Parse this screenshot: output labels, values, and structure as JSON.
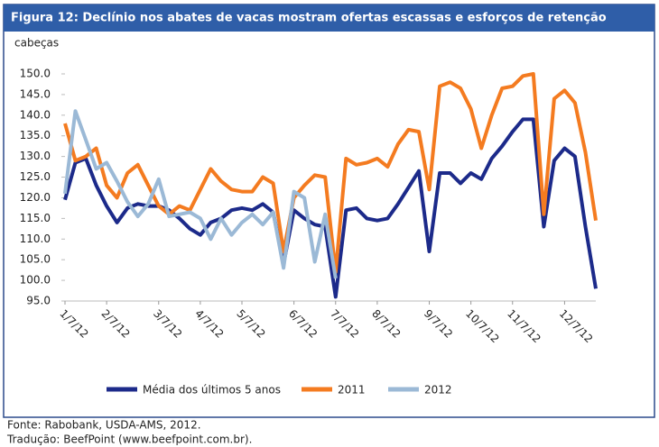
{
  "chart_data": {
    "type": "line",
    "title": "Figura 12: Declínio nos abates de vacas mostram ofertas escassas e esforços de retenção",
    "y_label": "cabeças",
    "source": [
      "Fonte: Rabobank, USDA-AMS, 2012.",
      "Tradução: BeefPoint (www.beefpoint.com.br)."
    ],
    "categories": [
      "1/7/12",
      null,
      null,
      null,
      "2/7/12",
      null,
      null,
      null,
      null,
      "3/7/12",
      null,
      null,
      null,
      "4/7/12",
      null,
      null,
      null,
      "5/7/12",
      null,
      null,
      null,
      null,
      "6/7/12",
      null,
      null,
      null,
      "7/7/12",
      null,
      null,
      null,
      "8/7/12",
      null,
      null,
      null,
      null,
      "9/7/12",
      null,
      null,
      null,
      "10/7/12",
      null,
      null,
      null,
      "11/7/12",
      null,
      null,
      null,
      null,
      "12/7/12",
      null,
      null,
      null
    ],
    "series": [
      {
        "name": "Média dos últimos 5 anos",
        "color": "#1c2a8a",
        "values": [
          119.5,
          128.5,
          129.5,
          123,
          118,
          114,
          117.5,
          118.5,
          118,
          118,
          117,
          115,
          112.5,
          111,
          114,
          115,
          117,
          117.5,
          117,
          118.5,
          116.5,
          104,
          117,
          115,
          113.5,
          113,
          96,
          117,
          117.5,
          115,
          114.5,
          115,
          118.5,
          122.5,
          126.5,
          107,
          126,
          126,
          123.5,
          126,
          124.5,
          129.5,
          132.5,
          136,
          139,
          139,
          113,
          129,
          132,
          130,
          113,
          98
        ]
      },
      {
        "name": "2011",
        "color": "#f47b20",
        "values": [
          138,
          129,
          130,
          132,
          123,
          120,
          126,
          128,
          123,
          118,
          116,
          118,
          117,
          122,
          127,
          124,
          122,
          121.5,
          121.5,
          125,
          123.5,
          107,
          120,
          123,
          125.5,
          125,
          102,
          129.5,
          128,
          128.5,
          129.5,
          127.5,
          133,
          136.5,
          136,
          122,
          147,
          148,
          146.5,
          141.5,
          132,
          140,
          146.5,
          147,
          149.5,
          150,
          116,
          144,
          146,
          143,
          131,
          114.5
        ]
      },
      {
        "name": "2012",
        "color": "#9bb9d6",
        "values": [
          121,
          141,
          134,
          127,
          128.5,
          124,
          119,
          115.5,
          118.5,
          124.5,
          115.5,
          116,
          116.5,
          115,
          110,
          115,
          111,
          114,
          116,
          113.5,
          116.5,
          103,
          121.5,
          120,
          104.5,
          116,
          100.5,
          null,
          null,
          null,
          null,
          null,
          null,
          null,
          null,
          null,
          null,
          null,
          null,
          null,
          null,
          null,
          null,
          null,
          null,
          null,
          null,
          null,
          null,
          null,
          null,
          null
        ]
      }
    ],
    "ylim": [
      95,
      150
    ],
    "yticks": [
      {
        "value": 95,
        "label": "95.0"
      },
      {
        "value": 100,
        "label": "100.0"
      },
      {
        "value": 105,
        "label": "105.0"
      },
      {
        "value": 110,
        "label": "110.0"
      },
      {
        "value": 115,
        "label": "115.0"
      },
      {
        "value": 120,
        "label": "120.0"
      },
      {
        "value": 125,
        "label": "125.0"
      },
      {
        "value": 130,
        "label": "130.0"
      },
      {
        "value": 135,
        "label": "135.0"
      },
      {
        "value": 140,
        "label": "140.0"
      },
      {
        "value": 145,
        "label": "145.0"
      },
      {
        "value": 150,
        "label": "150.0"
      }
    ],
    "grid": false,
    "legend": "bottom"
  }
}
